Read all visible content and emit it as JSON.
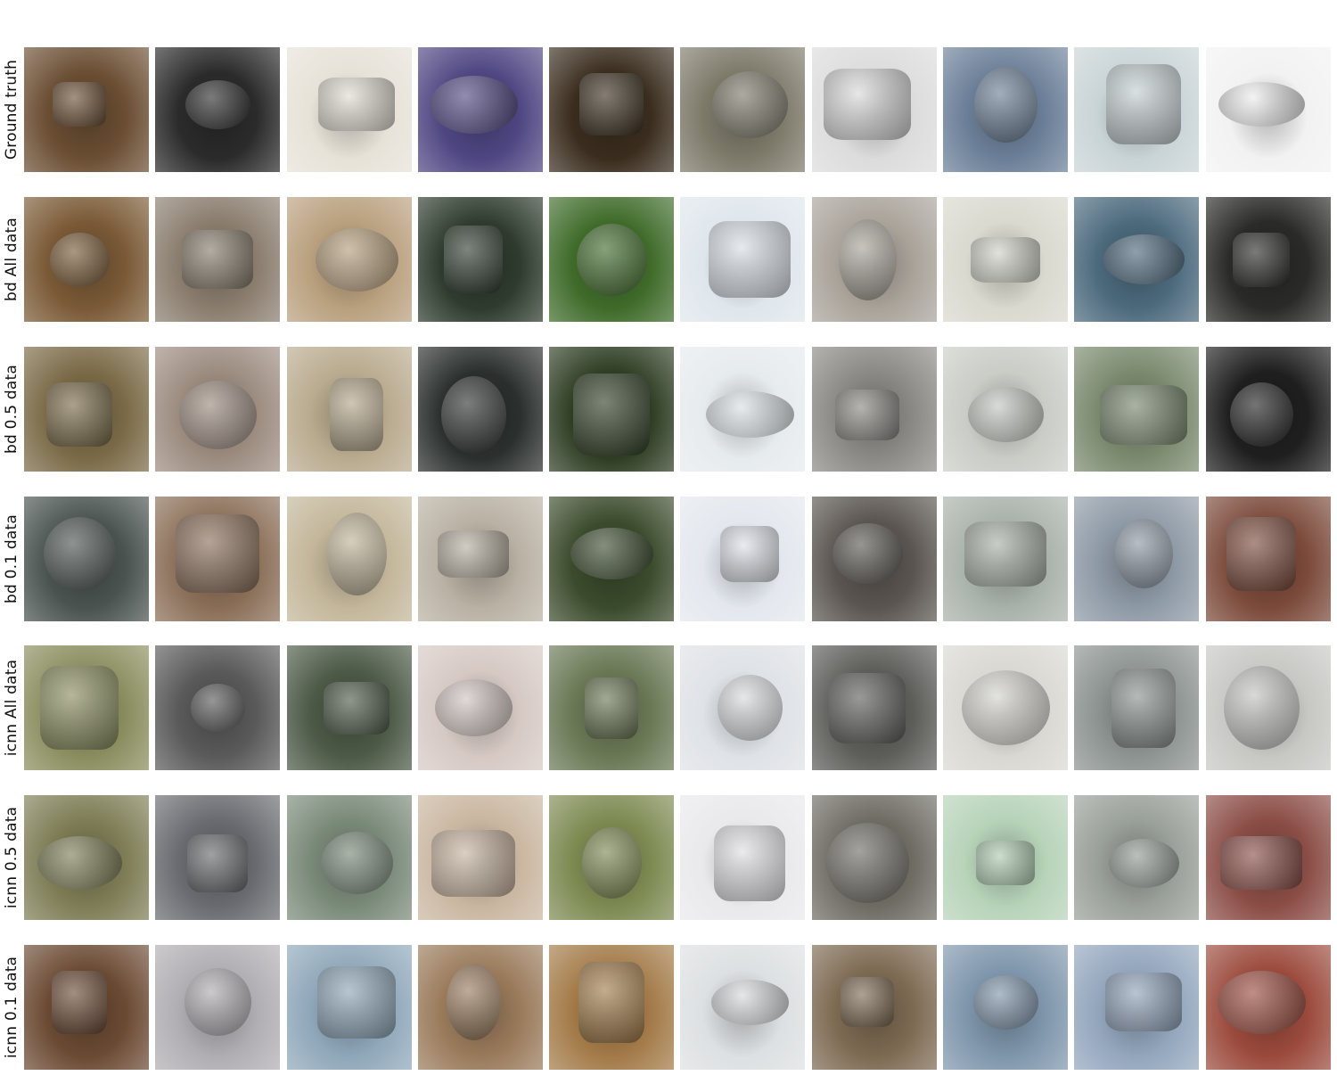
{
  "figure": {
    "rows": [
      {
        "label": "Ground truth",
        "palette": [
          "#6b4e33",
          "#2b2b2b",
          "#e7e2d8",
          "#4f4682",
          "#3a2d1e",
          "#7d7a6a",
          "#dcdcdc",
          "#6b7f98",
          "#c9d4d6",
          "#f2f2f2"
        ]
      },
      {
        "label": "bd All data",
        "palette": [
          "#7a5a36",
          "#8a7d6e",
          "#b9a07e",
          "#2e3b2e",
          "#3f6b2a",
          "#dfe6ec",
          "#a9a39a",
          "#d9d9cf",
          "#4c6a7d",
          "#2a2a28"
        ]
      },
      {
        "label": "bd 0.5 data",
        "palette": [
          "#7a6a47",
          "#9c8c80",
          "#b9ab8f",
          "#2b2f2e",
          "#2e3d23",
          "#e6ebee",
          "#8c8a86",
          "#c9cdc6",
          "#7b8a6f",
          "#1f1f1f"
        ]
      },
      {
        "label": "bd 0.1 data",
        "palette": [
          "#4a5350",
          "#8a6e57",
          "#c3b69a",
          "#b9b1a3",
          "#3b4b2c",
          "#e3e8ee",
          "#5a5550",
          "#a9b2aa",
          "#8e9aa6",
          "#7b4a3a"
        ]
      },
      {
        "label": "icnn All data",
        "palette": [
          "#8a8d5e",
          "#5a5a5a",
          "#4d5a47",
          "#d6c9c4",
          "#6a7855",
          "#dfe2e6",
          "#5d5e5a",
          "#d9d8d2",
          "#8d9491",
          "#c7c7c4"
        ]
      },
      {
        "label": "icnn 0.5 data",
        "palette": [
          "#7e7d56",
          "#6a6b70",
          "#7a8a79",
          "#c9b6a0",
          "#7d8a52",
          "#e9e9ec",
          "#6f6c64",
          "#b6d3b8",
          "#9aa09a",
          "#8b4d46"
        ]
      },
      {
        "label": "icnn 0.1 data",
        "palette": [
          "#6b4a33",
          "#b0aeb2",
          "#8fa7b9",
          "#9a7a5b",
          "#a37a48",
          "#dde0e2",
          "#7d6a52",
          "#7f96ac",
          "#93a6bd",
          "#9b4a3c"
        ]
      }
    ]
  }
}
